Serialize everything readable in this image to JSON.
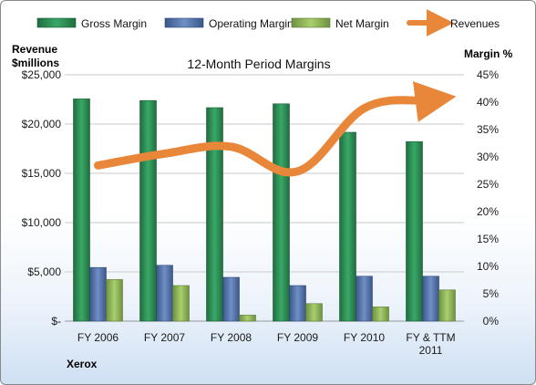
{
  "chart_data": {
    "type": "bar",
    "title": "12-Month Period Margins",
    "company": "Xerox",
    "ylabel_left": [
      "Revenue",
      "$millions"
    ],
    "ylabel_right": "Margin %",
    "categories": [
      [
        "FY 2006"
      ],
      [
        "FY 2007"
      ],
      [
        "FY 2008"
      ],
      [
        "FY 2009"
      ],
      [
        "FY 2010"
      ],
      [
        "FY & TTM",
        "2011"
      ]
    ],
    "ylim_left": [
      0,
      25000
    ],
    "yticks_left": [
      "$-",
      "$5,000",
      "$10,000",
      "$15,000",
      "$20,000",
      "$25,000"
    ],
    "ylim_right": [
      0,
      45
    ],
    "yticks_right": [
      "0%",
      "5%",
      "10%",
      "15%",
      "20%",
      "25%",
      "30%",
      "35%",
      "40%",
      "45%"
    ],
    "grid": true,
    "legend_position": "top",
    "series": [
      {
        "name": "Gross Margin",
        "axis": "right",
        "color": "#2e8b57",
        "values": [
          40.6,
          40.3,
          39.0,
          39.7,
          34.5,
          32.8
        ]
      },
      {
        "name": "Operating Margin",
        "axis": "right",
        "color": "#4f6fa8",
        "values": [
          9.8,
          10.2,
          8.0,
          6.5,
          8.2,
          8.2
        ]
      },
      {
        "name": "Net Margin",
        "axis": "right",
        "color": "#8fb556",
        "values": [
          7.6,
          6.5,
          1.1,
          3.2,
          2.6,
          5.7
        ]
      },
      {
        "name": "Revenues",
        "axis": "left",
        "color": "#e8873a",
        "type": "line",
        "values": [
          15800,
          17000,
          17700,
          15200,
          21600,
          22400
        ]
      }
    ]
  }
}
